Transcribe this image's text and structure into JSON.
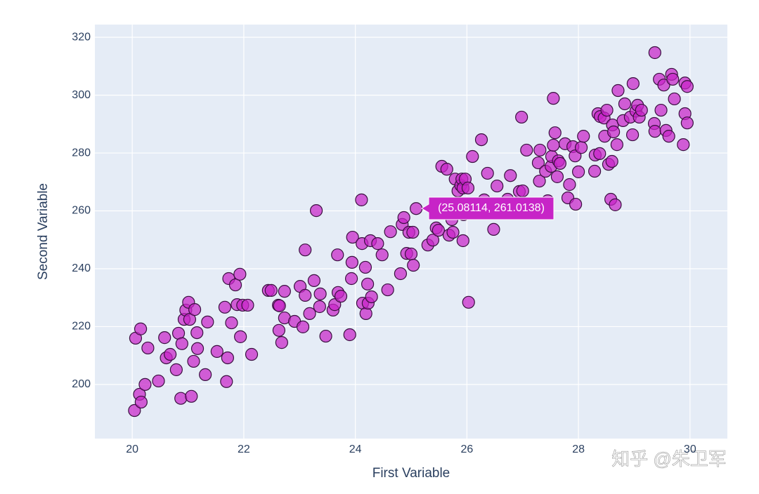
{
  "chart_data": {
    "type": "scatter",
    "x_label": "First Variable",
    "y_label": "Second Variable",
    "hover_label": "(25.08114, 261.0138)",
    "watermark": "知乎 @朱卫军",
    "color": "#c724c7",
    "edge_color": "#3a1040",
    "xlim": [
      19.33,
      30.67
    ],
    "xticks": [
      20,
      22,
      24,
      26,
      28,
      30
    ],
    "ylim": [
      181.3,
      324.4
    ],
    "yticks": [
      200,
      220,
      240,
      260,
      280,
      300,
      320
    ],
    "grid": true,
    "x": [
      20.04,
      20.06,
      20.15,
      20.13,
      20.16,
      20.23,
      20.28,
      20.47,
      20.58,
      20.61,
      20.68,
      20.79,
      20.83,
      20.87,
      20.89,
      20.93,
      20.96,
      21.01,
      21.03,
      21.06,
      21.1,
      21.12,
      21.16,
      21.17,
      21.31,
      21.35,
      21.52,
      21.66,
      21.69,
      21.71,
      21.73,
      21.78,
      21.85,
      21.88,
      21.93,
      21.94,
      21.98,
      22.07,
      22.14,
      22.44,
      22.49,
      22.62,
      22.63,
      22.64,
      22.68,
      22.73,
      22.73,
      22.91,
      23.01,
      23.06,
      23.1,
      23.1,
      23.18,
      23.26,
      23.3,
      23.36,
      23.37,
      23.47,
      23.6,
      23.63,
      23.68,
      23.69,
      23.74,
      23.9,
      23.93,
      23.94,
      23.95,
      24.11,
      24.12,
      24.13,
      24.18,
      24.19,
      24.22,
      24.23,
      24.27,
      24.29,
      24.4,
      24.48,
      24.58,
      24.63,
      24.81,
      24.84,
      24.87,
      24.92,
      24.96,
      25.0,
      25.03,
      25.04,
      25.09,
      25.3,
      25.39,
      25.45,
      25.49,
      25.55,
      25.64,
      25.68,
      25.73,
      25.75,
      25.79,
      25.84,
      25.89,
      25.91,
      25.93,
      25.93,
      25.94,
      25.97,
      26.02,
      26.03,
      26.1,
      26.26,
      26.31,
      26.37,
      26.48,
      26.54,
      26.73,
      26.78,
      26.94,
      26.98,
      27.0,
      27.07,
      27.28,
      27.3,
      27.31,
      27.41,
      27.45,
      27.51,
      27.52,
      27.55,
      27.55,
      27.58,
      27.64,
      27.67,
      27.62,
      27.76,
      27.81,
      27.84,
      27.9,
      27.94,
      27.95,
      28.0,
      28.05,
      28.09,
      28.29,
      28.3,
      28.35,
      28.38,
      28.39,
      28.46,
      28.47,
      28.51,
      28.54,
      28.58,
      28.6,
      28.61,
      28.63,
      28.66,
      28.69,
      28.71,
      28.8,
      28.83,
      28.93,
      28.97,
      28.98,
      29.03,
      29.06,
      29.09,
      29.13,
      29.36,
      29.37,
      29.37,
      29.45,
      29.48,
      29.53,
      29.57,
      29.62,
      29.67,
      29.69,
      29.72,
      29.88,
      29.91,
      29.91,
      29.95,
      29.95
    ],
    "values": [
      191.0,
      216.0,
      219.2,
      196.6,
      193.9,
      200.0,
      212.6,
      201.2,
      216.2,
      209.2,
      210.4,
      205.1,
      217.7,
      195.2,
      214.1,
      222.5,
      225.7,
      228.4,
      222.5,
      195.9,
      208.0,
      225.9,
      217.9,
      212.4,
      203.4,
      221.6,
      211.4,
      226.7,
      201.0,
      209.2,
      236.6,
      221.3,
      234.4,
      227.6,
      238.1,
      216.5,
      227.4,
      227.4,
      210.4,
      232.5,
      232.5,
      227.4,
      218.7,
      227.2,
      214.5,
      223.0,
      232.2,
      221.8,
      233.9,
      219.9,
      230.8,
      246.5,
      224.5,
      235.9,
      260.1,
      226.9,
      231.3,
      216.7,
      225.7,
      227.6,
      244.8,
      231.8,
      230.5,
      217.2,
      236.6,
      242.2,
      250.9,
      263.8,
      248.7,
      228.1,
      240.5,
      224.5,
      234.7,
      228.1,
      249.7,
      230.3,
      248.7,
      244.8,
      232.7,
      252.8,
      238.3,
      255.3,
      257.7,
      245.3,
      252.6,
      245.1,
      252.6,
      241.2,
      260.8,
      248.2,
      249.9,
      254.1,
      253.3,
      275.4,
      274.4,
      251.6,
      257.0,
      252.6,
      271.0,
      266.9,
      268.8,
      271.0,
      267.9,
      249.7,
      258.7,
      271.0,
      267.9,
      228.4,
      278.8,
      284.6,
      263.8,
      273.0,
      253.6,
      268.6,
      264.0,
      272.2,
      266.7,
      292.4,
      266.9,
      281.0,
      276.6,
      270.3,
      281.0,
      273.7,
      263.5,
      275.4,
      278.8,
      282.7,
      298.9,
      287.0,
      277.3,
      276.4,
      271.8,
      283.2,
      264.5,
      269.1,
      282.2,
      279.0,
      262.3,
      273.5,
      281.9,
      285.8,
      273.7,
      279.3,
      293.6,
      279.8,
      292.6,
      292.1,
      285.8,
      294.8,
      276.1,
      264.0,
      277.1,
      289.7,
      287.3,
      262.1,
      282.9,
      301.6,
      291.2,
      297.0,
      292.4,
      286.3,
      304.0,
      294.5,
      296.5,
      292.4,
      294.8,
      290.2,
      287.5,
      314.7,
      305.5,
      294.8,
      303.5,
      287.8,
      285.8,
      307.2,
      305.5,
      298.7,
      282.9,
      304.2,
      293.6,
      303.0,
      290.4
    ]
  }
}
